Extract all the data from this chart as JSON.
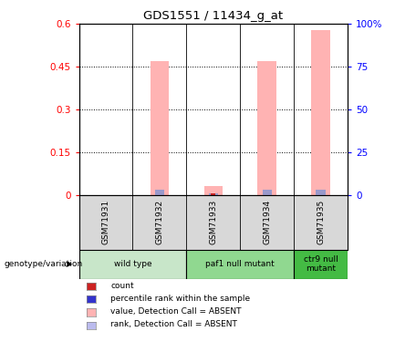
{
  "title": "GDS1551 / 11434_g_at",
  "samples": [
    "GSM71931",
    "GSM71932",
    "GSM71933",
    "GSM71934",
    "GSM71935"
  ],
  "pink_bar_values": [
    0.0,
    0.47,
    0.03,
    0.47,
    0.58
  ],
  "blue_bar_values": [
    0.0,
    0.018,
    0.005,
    0.018,
    0.018
  ],
  "red_bar_values": [
    0.0,
    0.0,
    0.005,
    0.0,
    0.0
  ],
  "ylim_left": [
    0,
    0.6
  ],
  "ylim_right": [
    0,
    100
  ],
  "yticks_left": [
    0,
    0.15,
    0.3,
    0.45,
    0.6
  ],
  "yticks_right": [
    0,
    25,
    50,
    75,
    100
  ],
  "ytick_labels_left": [
    "0",
    "0.15",
    "0.3",
    "0.45",
    "0.6"
  ],
  "ytick_labels_right": [
    "0",
    "25",
    "50",
    "75",
    "100%"
  ],
  "pink_color": "#ffb3b3",
  "blue_color": "#9999cc",
  "red_color": "#cc2222",
  "dark_blue_color": "#3333cc",
  "bg_color": "#d8d8d8",
  "group_colors": [
    "#c8e6c9",
    "#90d890",
    "#44bb44"
  ],
  "groups_data": [
    [
      0,
      1,
      "wild type"
    ],
    [
      2,
      3,
      "paf1 null mutant"
    ],
    [
      4,
      4,
      "ctr9 null\nmutant"
    ]
  ],
  "legend_colors": [
    "#cc2222",
    "#3333cc",
    "#ffb3b3",
    "#bbbbee"
  ],
  "legend_labels": [
    "count",
    "percentile rank within the sample",
    "value, Detection Call = ABSENT",
    "rank, Detection Call = ABSENT"
  ],
  "hgrid_vals": [
    0.15,
    0.3,
    0.45
  ],
  "bar_width": 0.35
}
